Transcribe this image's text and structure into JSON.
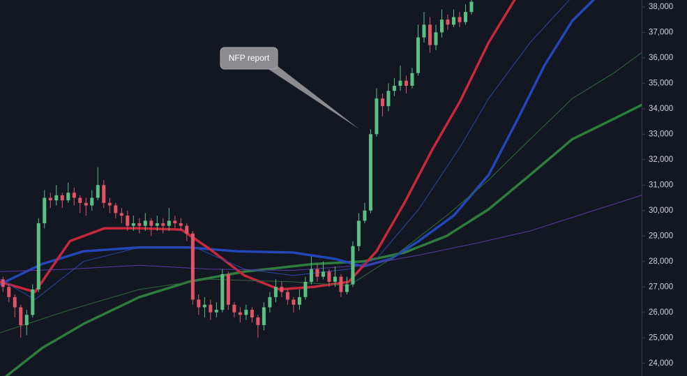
{
  "chart_data": {
    "type": "candlestick",
    "annotation": "NFP report",
    "up_color": "#5cbf84",
    "down_color": "#e05468",
    "xlim": [
      0,
      108.2
    ],
    "ylim": [
      23500,
      38270
    ],
    "yticks": [
      {
        "value": 24000,
        "label": "24,000"
      },
      {
        "value": 25000,
        "label": "25,000"
      },
      {
        "value": 26000,
        "label": "26,000"
      },
      {
        "value": 27000,
        "label": "27,000"
      },
      {
        "value": 28000,
        "label": "28,000"
      },
      {
        "value": 29000,
        "label": "29,000"
      },
      {
        "value": 30000,
        "label": "30,000"
      },
      {
        "value": 31000,
        "label": "31,000"
      },
      {
        "value": 32000,
        "label": "32,000"
      },
      {
        "value": 33000,
        "label": "33,000"
      },
      {
        "value": 34000,
        "label": "34,000"
      },
      {
        "value": 35000,
        "label": "35,000"
      },
      {
        "value": 36000,
        "label": "36,000"
      },
      {
        "value": 37000,
        "label": "37,000"
      },
      {
        "value": 38000,
        "label": "38,000"
      }
    ],
    "open": [
      27300,
      27000,
      26600,
      26200,
      25500,
      25900,
      26900,
      29500,
      30500,
      30400,
      30600,
      30400,
      30700,
      30500,
      30300,
      30200,
      30500,
      31000,
      30300,
      30200,
      29900,
      29800,
      29400,
      29500,
      29400,
      29600,
      29400,
      29500,
      29400,
      29600,
      29500,
      29400,
      29100,
      26500,
      26200,
      26300,
      26000,
      26100,
      27500,
      26300,
      26000,
      25900,
      26100,
      25800,
      25500,
      26200,
      26600,
      27000,
      26800,
      26500,
      26300,
      26600,
      27200,
      27700,
      27400,
      27600,
      27200,
      27400,
      26800,
      27100,
      28600,
      29600,
      30000,
      33000,
      34400,
      34100,
      34700,
      34900,
      35100,
      34900,
      35400,
      36800,
      37300,
      36500,
      37000,
      37500,
      37300,
      37600,
      37400,
      37800
    ],
    "high": [
      27400,
      27100,
      26700,
      26300,
      26100,
      27100,
      29700,
      30800,
      30700,
      31000,
      30700,
      31100,
      30900,
      30600,
      30500,
      30800,
      31700,
      31200,
      30500,
      30300,
      30100,
      30000,
      29800,
      29700,
      29900,
      29700,
      29800,
      29700,
      30100,
      29800,
      29700,
      29500,
      29200,
      26700,
      26600,
      26500,
      26400,
      27700,
      27600,
      26400,
      26200,
      26300,
      26200,
      25900,
      26400,
      26800,
      27300,
      27200,
      26900,
      26600,
      26900,
      27400,
      28200,
      27900,
      28000,
      27700,
      27800,
      27500,
      27400,
      28800,
      29900,
      30300,
      33200,
      34800,
      34600,
      35000,
      35200,
      35700,
      35300,
      35600,
      37300,
      37800,
      37600,
      37300,
      37900,
      37700,
      37900,
      37800,
      38100,
      38500
    ],
    "low": [
      26800,
      26400,
      25800,
      25000,
      25100,
      25800,
      26800,
      29300,
      30100,
      30200,
      30100,
      30300,
      30200,
      29900,
      29800,
      30000,
      30400,
      30100,
      29900,
      29700,
      29500,
      29200,
      29200,
      29100,
      29200,
      29000,
      29200,
      29100,
      29200,
      29300,
      29200,
      28800,
      26300,
      25900,
      25800,
      25700,
      25800,
      26000,
      26100,
      25800,
      25600,
      25700,
      25600,
      25000,
      25300,
      26000,
      26400,
      26600,
      26300,
      26000,
      26100,
      26500,
      27100,
      27200,
      27300,
      27000,
      27000,
      26600,
      26700,
      27000,
      28400,
      29500,
      29900,
      32900,
      33700,
      33900,
      34500,
      34700,
      34600,
      34800,
      35300,
      36600,
      36200,
      36300,
      36800,
      37100,
      37200,
      37200,
      37300,
      37700
    ],
    "close": [
      27000,
      26600,
      26200,
      25500,
      25900,
      26900,
      29500,
      30500,
      30400,
      30600,
      30400,
      30700,
      30500,
      30300,
      30200,
      30500,
      31000,
      30300,
      30200,
      29900,
      29800,
      29400,
      29500,
      29400,
      29600,
      29400,
      29500,
      29400,
      29600,
      29500,
      29400,
      29100,
      26500,
      26200,
      26300,
      26000,
      26100,
      27500,
      26300,
      26000,
      25900,
      26100,
      25800,
      25500,
      26200,
      26600,
      27000,
      26800,
      26500,
      26300,
      26600,
      27200,
      27700,
      27400,
      27600,
      27200,
      27400,
      26800,
      27100,
      28600,
      29600,
      30000,
      33000,
      34400,
      34100,
      34700,
      34900,
      35100,
      34900,
      35400,
      36800,
      37300,
      36500,
      37000,
      37500,
      37300,
      37600,
      37400,
      37800,
      38200
    ],
    "lines": [
      {
        "color": "#2f7d3e",
        "x": [
          0,
          7.1,
          14.1,
          23.5,
          31.8,
          41.2,
          52.9,
          61.2,
          68.2,
          75.3,
          82.4,
          89.4,
          96.5,
          103.5,
          108.2
        ],
        "values": [
          23300,
          24600,
          25550,
          26600,
          27200,
          27600,
          27900,
          28000,
          28350,
          29000,
          30050,
          31400,
          32800,
          33600,
          34150
        ]
      },
      {
        "color": "#2346b8",
        "x": [
          0,
          7.1,
          14.1,
          23.5,
          31.8,
          40,
          49.4,
          56.5,
          61.2,
          65.9,
          70.6,
          76.5,
          82.4,
          87.1,
          91.8,
          96.5,
          100.6
        ],
        "values": [
          27100,
          27900,
          28400,
          28550,
          28550,
          28400,
          28350,
          28100,
          27800,
          28100,
          28800,
          29800,
          31400,
          33500,
          35700,
          37450,
          38400
        ]
      },
      {
        "color": "#c8283c",
        "x": [
          0,
          5.9,
          11.8,
          17.6,
          23.5,
          30.6,
          35.3,
          41.2,
          47.1,
          52.9,
          58.8,
          63.5,
          68.2,
          72.9,
          77.6,
          82.4,
          87.1
        ],
        "values": [
          27200,
          26800,
          28800,
          29300,
          29300,
          29250,
          28500,
          27450,
          26900,
          27000,
          27200,
          28400,
          30300,
          32400,
          34300,
          36600,
          38400
        ]
      },
      {
        "color": "#2a47a8",
        "x": [
          0,
          5.9,
          14.1,
          23.5,
          32.9,
          41.2,
          49.4,
          58.8,
          63.5,
          70.6,
          77.6,
          82.4,
          89.4,
          96.5
        ],
        "values": [
          27300,
          26500,
          28000,
          28550,
          28550,
          27700,
          27450,
          27700,
          28100,
          30050,
          32500,
          34400,
          36600,
          38400
        ]
      },
      {
        "color": "#2f6a3a",
        "x": [
          0,
          11.8,
          23.5,
          35.3,
          49.4,
          58.8,
          65.9,
          75.3,
          82.4,
          89.4,
          96.5,
          103.5,
          108.2
        ],
        "values": [
          25200,
          26100,
          26900,
          27300,
          27200,
          27050,
          28100,
          29800,
          31200,
          32800,
          34400,
          35400,
          36200
        ]
      },
      {
        "color": "#5b3aa0",
        "x": [
          0,
          11.8,
          23.5,
          35.3,
          49.4,
          61.2,
          70.6,
          80,
          89.4,
          98.8,
          108.2
        ],
        "values": [
          27600,
          27700,
          27850,
          27700,
          27650,
          27850,
          28250,
          28700,
          29200,
          29900,
          30600
        ]
      }
    ]
  }
}
